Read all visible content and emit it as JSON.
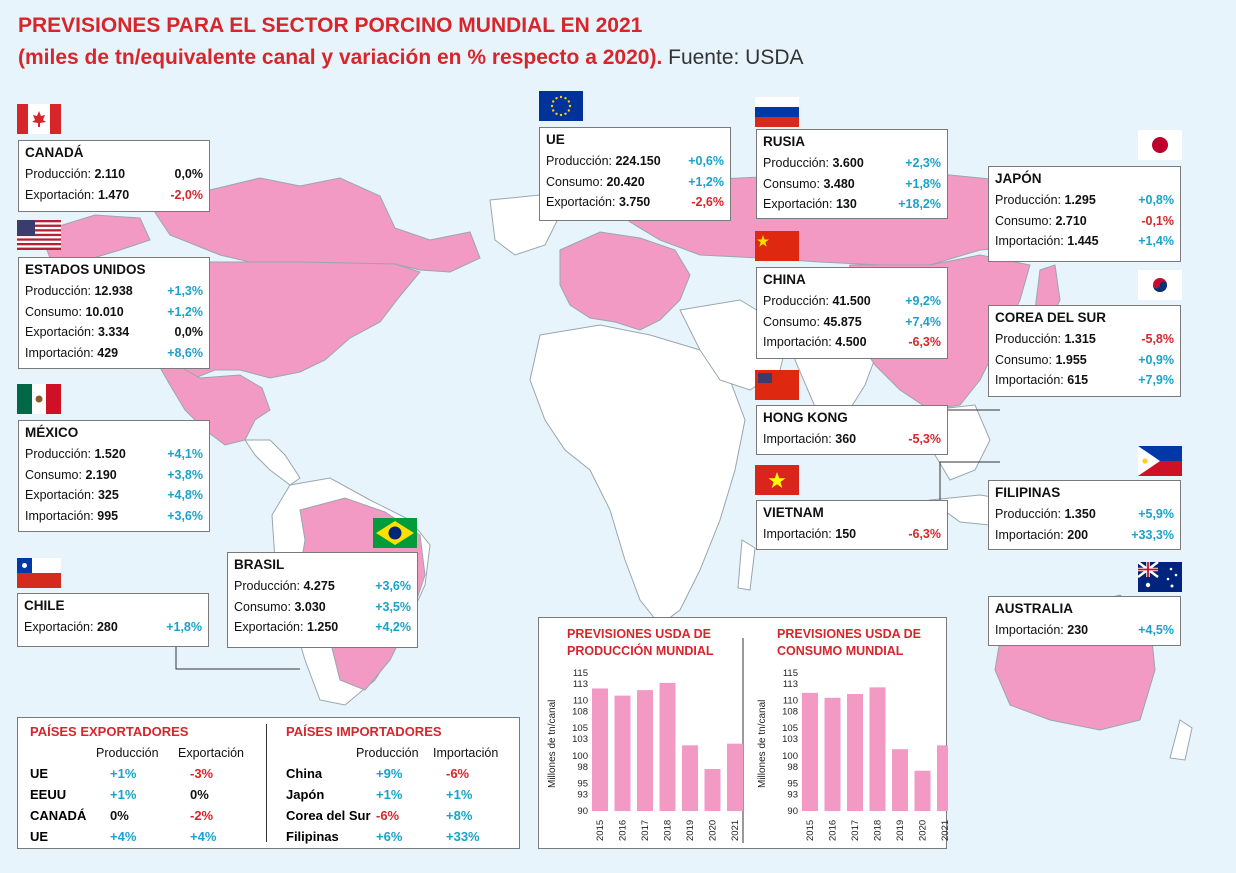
{
  "title": {
    "line1": "PREVISIONES PARA EL SECTOR PORCINO MUNDIAL EN 2021",
    "line2": "(miles de tn/equivalente canal y variación en % respecto a 2020).",
    "source": "Fuente: USDA"
  },
  "countries": {
    "canada": {
      "name": "CANADÁ",
      "rows": [
        {
          "label": "Producción:",
          "value": "2.110",
          "change": "0,0%"
        },
        {
          "label": "Exportación:",
          "value": "1.470",
          "change": "-2,0%"
        }
      ]
    },
    "usa": {
      "name": "ESTADOS UNIDOS",
      "rows": [
        {
          "label": "Producción:",
          "value": "12.938",
          "change": "+1,3%"
        },
        {
          "label": "Consumo:",
          "value": "10.010",
          "change": "+1,2%"
        },
        {
          "label": "Exportación:",
          "value": "3.334",
          "change": "0,0%"
        },
        {
          "label": "Importación:",
          "value": "429",
          "change": "+8,6%"
        }
      ]
    },
    "mexico": {
      "name": "MÉXICO",
      "rows": [
        {
          "label": "Producción:",
          "value": "1.520",
          "change": "+4,1%"
        },
        {
          "label": "Consumo:",
          "value": "2.190",
          "change": "+3,8%"
        },
        {
          "label": "Exportación:",
          "value": "325",
          "change": "+4,8%"
        },
        {
          "label": "Importación:",
          "value": "995",
          "change": "+3,6%"
        }
      ]
    },
    "chile": {
      "name": "CHILE",
      "rows": [
        {
          "label": "Exportación:",
          "value": "280",
          "change": "+1,8%"
        }
      ]
    },
    "brasil": {
      "name": "BRASIL",
      "rows": [
        {
          "label": "Producción:",
          "value": "4.275",
          "change": "+3,6%"
        },
        {
          "label": "Consumo:",
          "value": "3.030",
          "change": "+3,5%"
        },
        {
          "label": "Exportación:",
          "value": "1.250",
          "change": "+4,2%"
        }
      ]
    },
    "ue": {
      "name": "UE",
      "rows": [
        {
          "label": "Producción:",
          "value": "224.150",
          "change": "+0,6%"
        },
        {
          "label": "Consumo:",
          "value": "20.420",
          "change": "+1,2%"
        },
        {
          "label": "Exportación:",
          "value": "3.750",
          "change": "-2,6%"
        }
      ]
    },
    "rusia": {
      "name": "RUSIA",
      "rows": [
        {
          "label": "Producción:",
          "value": "3.600",
          "change": "+2,3%"
        },
        {
          "label": "Consumo:",
          "value": "3.480",
          "change": "+1,8%"
        },
        {
          "label": "Exportación:",
          "value": "130",
          "change": "+18,2%"
        }
      ]
    },
    "china": {
      "name": "CHINA",
      "rows": [
        {
          "label": "Producción:",
          "value": "41.500",
          "change": "+9,2%"
        },
        {
          "label": "Consumo:",
          "value": "45.875",
          "change": "+7,4%"
        },
        {
          "label": "Importación:",
          "value": "4.500",
          "change": "-6,3%"
        }
      ]
    },
    "hongkong": {
      "name": "HONG KONG",
      "rows": [
        {
          "label": "Importación:",
          "value": "360",
          "change": "-5,3%"
        }
      ]
    },
    "vietnam": {
      "name": "VIETNAM",
      "rows": [
        {
          "label": "Importación:",
          "value": "150",
          "change": "-6,3%"
        }
      ]
    },
    "japon": {
      "name": "JAPÓN",
      "rows": [
        {
          "label": "Producción:",
          "value": "1.295",
          "change": "+0,8%"
        },
        {
          "label": "Consumo:",
          "value": "2.710",
          "change": "-0,1%"
        },
        {
          "label": "Importación:",
          "value": "1.445",
          "change": "+1,4%"
        }
      ]
    },
    "corea": {
      "name": "COREA DEL SUR",
      "rows": [
        {
          "label": "Producción:",
          "value": "1.315",
          "change": "-5,8%"
        },
        {
          "label": "Consumo:",
          "value": "1.955",
          "change": "+0,9%"
        },
        {
          "label": "Importación:",
          "value": "615",
          "change": "+7,9%"
        }
      ]
    },
    "filipinas": {
      "name": "FILIPINAS",
      "rows": [
        {
          "label": "Producción:",
          "value": "1.350",
          "change": "+5,9%"
        },
        {
          "label": "Importación:",
          "value": "200",
          "change": "+33,3%"
        }
      ]
    },
    "australia": {
      "name": "AUSTRALIA",
      "rows": [
        {
          "label": "Importación:",
          "value": "230",
          "change": "+4,5%"
        }
      ]
    }
  },
  "summary": {
    "exporters": {
      "heading": "PAÍSES EXPORTADORES",
      "col1": "Producción",
      "col2": "Exportación",
      "rows": [
        {
          "name": "UE",
          "prod": "+1%",
          "exp": "-3%"
        },
        {
          "name": "EEUU",
          "prod": "+1%",
          "exp": "0%"
        },
        {
          "name": "CANADÁ",
          "prod": "0%",
          "exp": "-2%"
        },
        {
          "name": "UE",
          "prod": "+4%",
          "exp": "+4%"
        }
      ]
    },
    "importers": {
      "heading": "PAÍSES IMPORTADORES",
      "col1": "Producción",
      "col2": "Importación",
      "rows": [
        {
          "name": "China",
          "prod": "+9%",
          "imp": "-6%"
        },
        {
          "name": "Japón",
          "prod": "+1%",
          "imp": "+1%"
        },
        {
          "name": "Corea del Sur",
          "prod": "-6%",
          "imp": "+8%"
        },
        {
          "name": "Filipinas",
          "prod": "+6%",
          "imp": "+33%"
        }
      ]
    }
  },
  "colors": {
    "positive": "#1aa3c9",
    "negative": "#d7262b",
    "bar": "#f29ac4",
    "land_highlight": "#f29ac4",
    "title": "#d7262b",
    "sea": "#e8f4fb"
  },
  "chart_data": [
    {
      "type": "bar",
      "title": "PREVISIONES USDA DE PRODUCCIÓN MUNDIAL",
      "ylabel": "Millones de tn/canal",
      "xlabel": "",
      "categories": [
        "2015",
        "2016",
        "2017",
        "2018",
        "2019",
        "2020",
        "2021"
      ],
      "values": [
        112.2,
        110.9,
        111.9,
        113.2,
        101.9,
        97.6,
        102.2
      ],
      "yticks": [
        90,
        93,
        95,
        98,
        100,
        103,
        105,
        108,
        110,
        113,
        115
      ],
      "ylim": [
        90,
        115
      ],
      "grid": false
    },
    {
      "type": "bar",
      "title": "PREVISIONES USDA DE CONSUMO MUNDIAL",
      "ylabel": "Millones de tn/canal",
      "xlabel": "",
      "categories": [
        "2015",
        "2016",
        "2017",
        "2018",
        "2019",
        "2020",
        "2021"
      ],
      "values": [
        111.4,
        110.5,
        111.2,
        112.4,
        101.2,
        97.3,
        101.9
      ],
      "yticks": [
        90,
        93,
        95,
        98,
        100,
        103,
        105,
        108,
        110,
        113,
        115
      ],
      "ylim": [
        90,
        115
      ],
      "grid": false
    }
  ]
}
